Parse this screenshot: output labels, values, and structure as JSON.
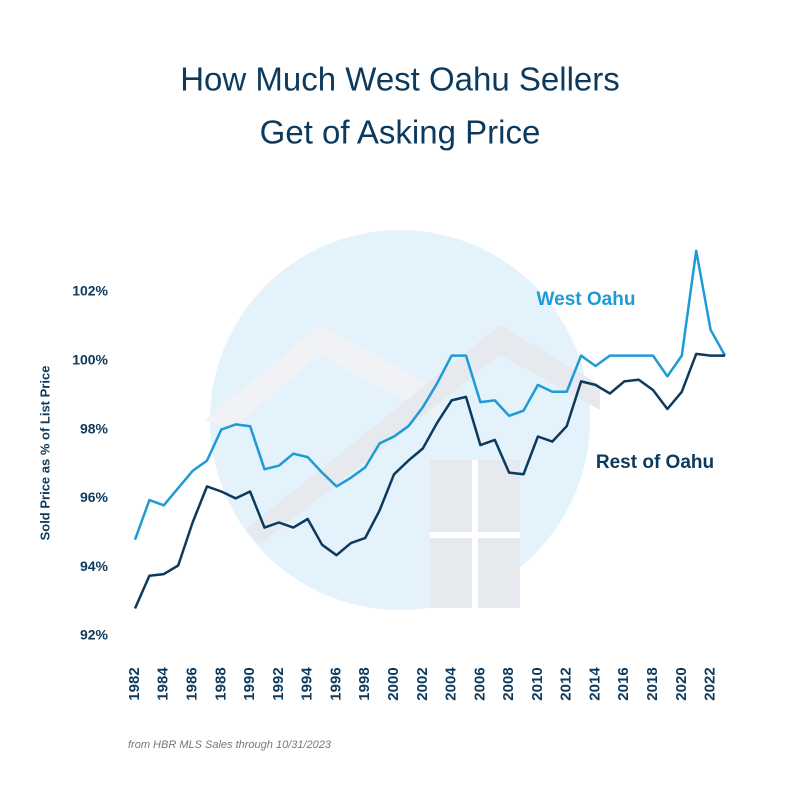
{
  "chart_data": {
    "type": "line",
    "title": [
      "How Much West Oahu Sellers",
      "Get of Asking Price"
    ],
    "y_label": "Sold Price as % of List Price",
    "note": "from HBR MLS Sales through 10/31/2023",
    "x": [
      1982,
      1983,
      1984,
      1985,
      1986,
      1987,
      1988,
      1989,
      1990,
      1991,
      1992,
      1993,
      1994,
      1995,
      1996,
      1997,
      1998,
      1999,
      2000,
      2001,
      2002,
      2003,
      2004,
      2005,
      2006,
      2007,
      2008,
      2009,
      2010,
      2011,
      2012,
      2013,
      2014,
      2015,
      2016,
      2017,
      2018,
      2019,
      2020,
      2021,
      2022,
      2023
    ],
    "series": [
      {
        "name": "West Oahu",
        "color": "#1e9ad6",
        "values": [
          94.8,
          95.95,
          95.8,
          96.3,
          96.8,
          97.1,
          98.0,
          98.15,
          98.1,
          96.85,
          96.95,
          97.3,
          97.2,
          96.75,
          96.35,
          96.6,
          96.9,
          97.6,
          97.8,
          98.1,
          98.65,
          99.35,
          100.15,
          100.15,
          98.8,
          98.85,
          98.4,
          98.55,
          99.3,
          99.1,
          99.1,
          100.15,
          99.85,
          100.15,
          100.15,
          100.15,
          100.15,
          99.55,
          100.15,
          103.2,
          100.9,
          100.15
        ]
      },
      {
        "name": "Rest of Oahu",
        "color": "#0d3a5c",
        "values": [
          92.8,
          93.75,
          93.8,
          94.05,
          95.3,
          96.35,
          96.2,
          96.0,
          96.2,
          95.15,
          95.3,
          95.15,
          95.4,
          94.65,
          94.35,
          94.7,
          94.85,
          95.65,
          96.7,
          97.1,
          97.45,
          98.2,
          98.85,
          98.95,
          97.55,
          97.7,
          96.75,
          96.7,
          97.8,
          97.65,
          98.1,
          99.4,
          99.3,
          99.05,
          99.4,
          99.45,
          99.15,
          98.6,
          99.1,
          100.2,
          100.15,
          100.15
        ]
      }
    ],
    "xlim": [
      1982,
      2023
    ],
    "xticks": [
      1982,
      1984,
      1986,
      1988,
      1990,
      1992,
      1994,
      1996,
      1998,
      2000,
      2002,
      2004,
      2006,
      2008,
      2010,
      2012,
      2014,
      2016,
      2018,
      2020,
      2022
    ],
    "ylim": [
      92,
      103.5
    ],
    "yticks": [
      {
        "value": 92,
        "label": "92%"
      },
      {
        "value": 94,
        "label": "94%"
      },
      {
        "value": 96,
        "label": "96%"
      },
      {
        "value": 98,
        "label": "98%"
      },
      {
        "value": 100,
        "label": "100%"
      },
      {
        "value": 102,
        "label": "102%"
      }
    ],
    "grid": false
  }
}
